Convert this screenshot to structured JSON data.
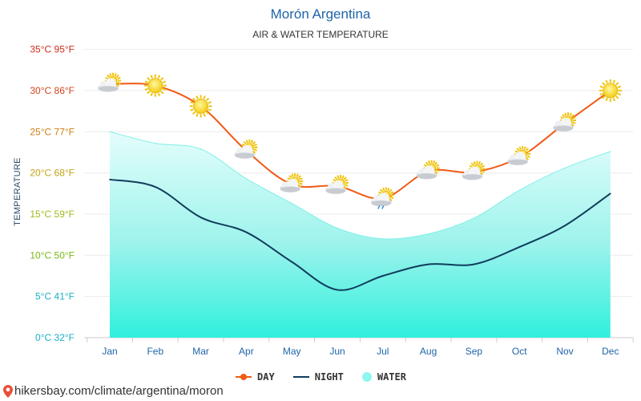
{
  "chart_data": {
    "type": "line",
    "title": "Morón Argentina",
    "subtitle": "AIR & WATER TEMPERATURE",
    "ylabel": "TEMPERATURE",
    "categories": [
      "Jan",
      "Feb",
      "Mar",
      "Apr",
      "May",
      "Jun",
      "Jul",
      "Aug",
      "Sep",
      "Oct",
      "Nov",
      "Dec"
    ],
    "ylim": [
      0,
      35
    ],
    "yticks": [
      {
        "value": 0,
        "label": "0°C 32°F",
        "color": "#1ab1c6"
      },
      {
        "value": 5,
        "label": "5°C 41°F",
        "color": "#1ab1c6"
      },
      {
        "value": 10,
        "label": "10°C 50°F",
        "color": "#7ab818"
      },
      {
        "value": 15,
        "label": "15°C 59°F",
        "color": "#a3b91c"
      },
      {
        "value": 20,
        "label": "20°C 68°F",
        "color": "#c3a514"
      },
      {
        "value": 25,
        "label": "25°C 77°F",
        "color": "#cf7f12"
      },
      {
        "value": 30,
        "label": "30°C 86°F",
        "color": "#d5441c"
      },
      {
        "value": 35,
        "label": "35°C 95°F",
        "color": "#d02d1c"
      }
    ],
    "grid": true,
    "series": [
      {
        "name": "DAY",
        "color": "#f05a16",
        "values": [
          30.8,
          30.6,
          28.1,
          22.7,
          18.6,
          18.4,
          16.9,
          20.2,
          20.1,
          21.9,
          26.0,
          30.0
        ]
      },
      {
        "name": "NIGHT",
        "color": "#103c5c",
        "values": [
          19.2,
          18.3,
          14.6,
          12.8,
          9.2,
          5.8,
          7.5,
          8.9,
          8.9,
          11.0,
          13.6,
          17.5
        ]
      },
      {
        "name": "WATER",
        "color": "#8ff6ef",
        "values": [
          25.0,
          23.6,
          22.9,
          19.3,
          16.3,
          13.3,
          12.0,
          12.6,
          14.5,
          17.9,
          20.6,
          22.6
        ]
      }
    ],
    "weather_icons": [
      "partly-cloudy-icon",
      "sun-icon",
      "sun-icon",
      "partly-cloudy-icon",
      "partly-cloudy-icon",
      "partly-cloudy-icon",
      "rain-cloud-icon",
      "partly-cloudy-icon",
      "partly-cloudy-icon",
      "partly-cloudy-icon",
      "partly-cloudy-icon",
      "sun-icon"
    ],
    "legend_position": "bottom"
  },
  "footer": {
    "text": "hikersbay.com/climate/argentina/moron",
    "pin_color": "#e8503a"
  }
}
